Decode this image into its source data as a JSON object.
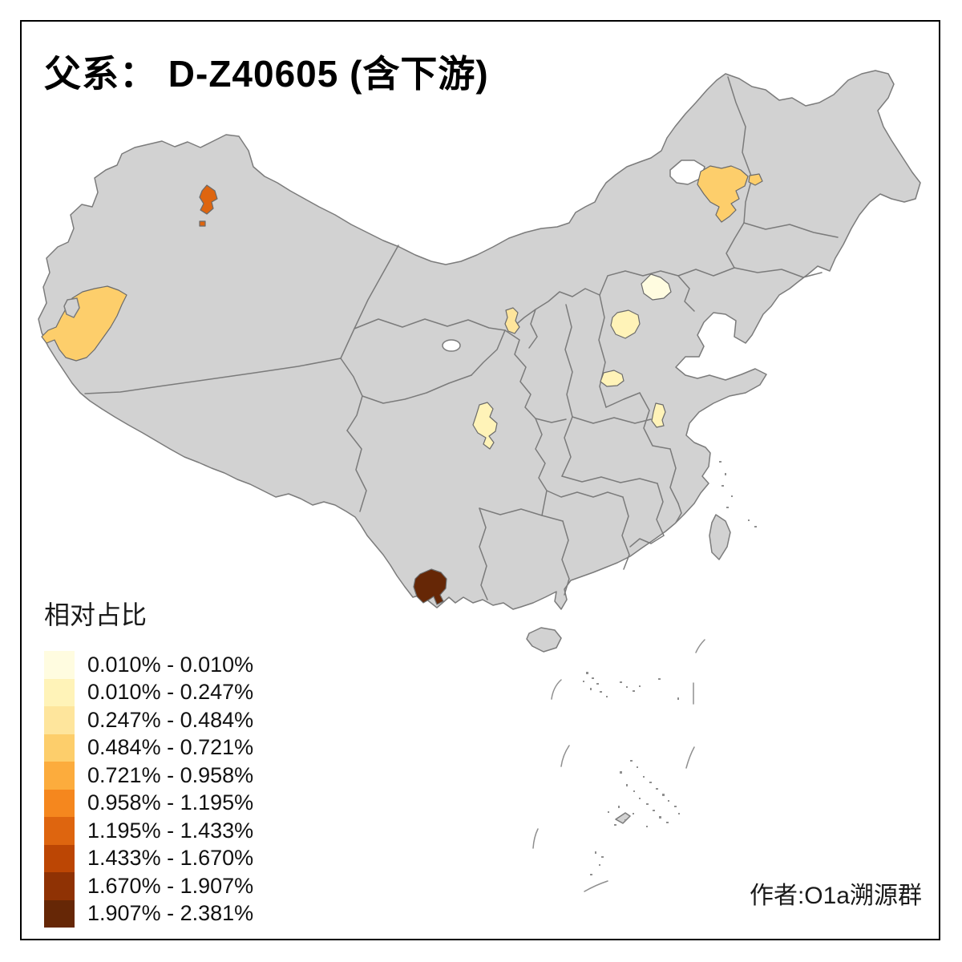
{
  "title": "父系： D-Z40605 (含下游)",
  "author_credit": "作者:O1a溯源群",
  "legend": {
    "title": "相对占比",
    "classes": [
      {
        "label": "0.010% - 0.010%",
        "color": "#FFFCE0"
      },
      {
        "label": "0.010% - 0.247%",
        "color": "#FFF3B8"
      },
      {
        "label": "0.247% - 0.484%",
        "color": "#FEE59C"
      },
      {
        "label": "0.484% - 0.721%",
        "color": "#FDCE6B"
      },
      {
        "label": "0.721% - 0.958%",
        "color": "#FCAC3D"
      },
      {
        "label": "0.958% - 1.195%",
        "color": "#F5871E"
      },
      {
        "label": "1.195% - 1.433%",
        "color": "#DE650F"
      },
      {
        "label": "1.433% - 1.670%",
        "color": "#BC4604"
      },
      {
        "label": "1.670% - 1.907%",
        "color": "#8F3204"
      },
      {
        "label": "1.907% - 2.381%",
        "color": "#662706"
      }
    ]
  },
  "map": {
    "base_fill": "#D2D2D2",
    "boundary_color": "#7B7B7B",
    "highlighted_regions": [
      {
        "name": "northeast-inner-mongolia",
        "range": "0.484% - 0.721%",
        "class_index": 3
      },
      {
        "name": "northeast-inner-mongolia-east-piece",
        "range": "0.484% - 0.721%",
        "class_index": 3
      },
      {
        "name": "north-xinjiang",
        "range": "1.195% - 1.433%",
        "class_index": 6
      },
      {
        "name": "north-xinjiang-small-piece",
        "range": "1.195% - 1.433%",
        "class_index": 6
      },
      {
        "name": "southwest-xinjiang-kashgar",
        "range": "0.484% - 0.721%",
        "class_index": 3
      },
      {
        "name": "central-gansu",
        "range": "0.247% - 0.484%",
        "class_index": 2
      },
      {
        "name": "beijing",
        "range": "0.010% - 0.010%",
        "class_index": 0
      },
      {
        "name": "central-hebei",
        "range": "0.010% - 0.247%",
        "class_index": 1
      },
      {
        "name": "southeast-shanxi",
        "range": "0.010% - 0.247%",
        "class_index": 1
      },
      {
        "name": "southwest-shandong",
        "range": "0.010% - 0.247%",
        "class_index": 1
      },
      {
        "name": "central-sichuan",
        "range": "0.010% - 0.247%",
        "class_index": 1
      },
      {
        "name": "south-yunnan",
        "range": "1.907% - 2.381%",
        "class_index": 9
      }
    ]
  }
}
